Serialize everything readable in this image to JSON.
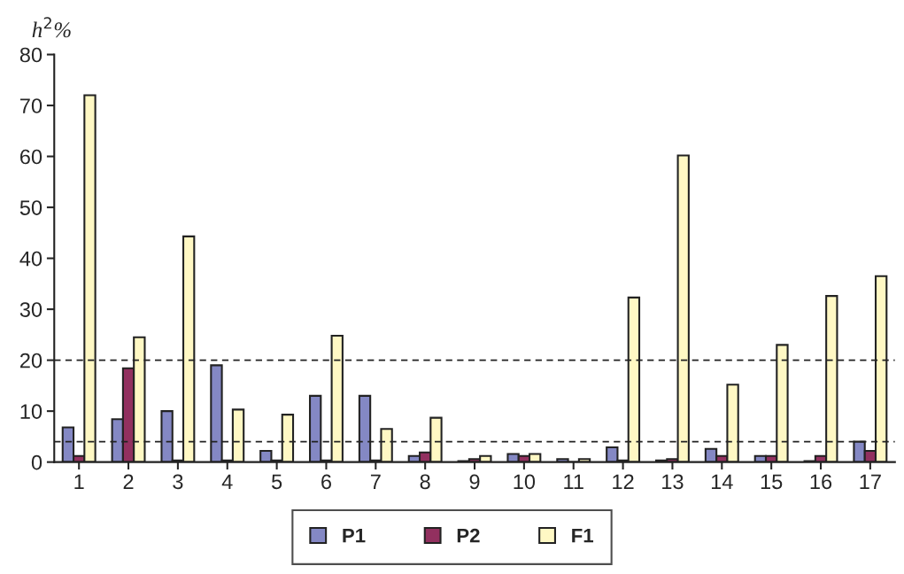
{
  "chart_data": {
    "type": "bar",
    "ylabel": "h$^{2}$%",
    "categories": [
      "1",
      "2",
      "3",
      "4",
      "5",
      "6",
      "7",
      "8",
      "9",
      "10",
      "11",
      "12",
      "13",
      "14",
      "15",
      "16",
      "17"
    ],
    "series": [
      {
        "name": "P1",
        "color": "#8488c4",
        "values": [
          6.8,
          8.4,
          10,
          19,
          2.2,
          13,
          13,
          1.2,
          0.2,
          1.6,
          0.6,
          2.9,
          0.3,
          2.6,
          1.2,
          0.2,
          4
        ]
      },
      {
        "name": "P2",
        "color": "#92305f",
        "values": [
          1.2,
          18.4,
          0.3,
          0.3,
          0.3,
          0.3,
          0.3,
          1.9,
          0.6,
          1.2,
          0,
          0.3,
          0.6,
          1.2,
          1.2,
          1.2,
          2.2
        ]
      },
      {
        "name": "F1",
        "color": "#fff8c4",
        "values": [
          72,
          24.5,
          44.3,
          10.3,
          9.3,
          24.8,
          6.5,
          8.7,
          1.2,
          1.6,
          0.6,
          32.3,
          60.2,
          15.2,
          23,
          32.6,
          36.5
        ]
      }
    ],
    "ylim": [
      0,
      80
    ],
    "yticks": [
      0,
      10,
      20,
      30,
      40,
      50,
      60,
      70,
      80
    ],
    "ref_lines": [
      {
        "axis": "y",
        "value": 20,
        "line_style": "dashed",
        "color": "#222222"
      },
      {
        "axis": "y",
        "value": 4,
        "line_style": "dashed",
        "color": "#222222"
      }
    ],
    "legend": "bottom",
    "grid": false
  }
}
